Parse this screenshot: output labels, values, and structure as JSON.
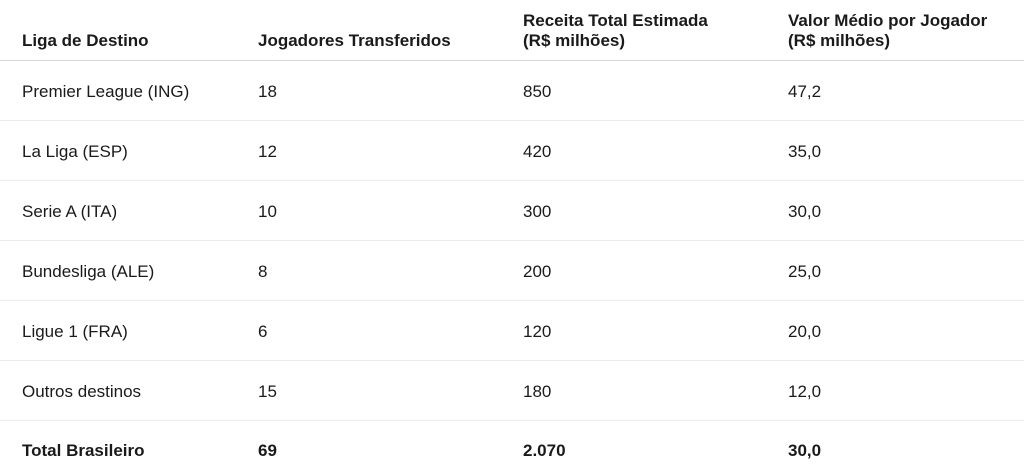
{
  "table": {
    "headers": [
      [
        "Liga de Destino"
      ],
      [
        "Jogadores Transferidos"
      ],
      [
        "Receita Total Estimada",
        "(R$ milhões)"
      ],
      [
        "Valor Médio por Jogador",
        "(R$ milhões)"
      ]
    ],
    "rows": [
      [
        "Premier League (ING)",
        "18",
        "850",
        "47,2"
      ],
      [
        "La Liga (ESP)",
        "12",
        "420",
        "35,0"
      ],
      [
        "Serie A (ITA)",
        "10",
        "300",
        "30,0"
      ],
      [
        "Bundesliga (ALE)",
        "8",
        "200",
        "25,0"
      ],
      [
        "Ligue 1 (FRA)",
        "6",
        "120",
        "20,0"
      ],
      [
        "Outros destinos",
        "15",
        "180",
        "12,0"
      ]
    ],
    "total": [
      "Total Brasileiro",
      "69",
      "2.070",
      "30,0"
    ]
  }
}
